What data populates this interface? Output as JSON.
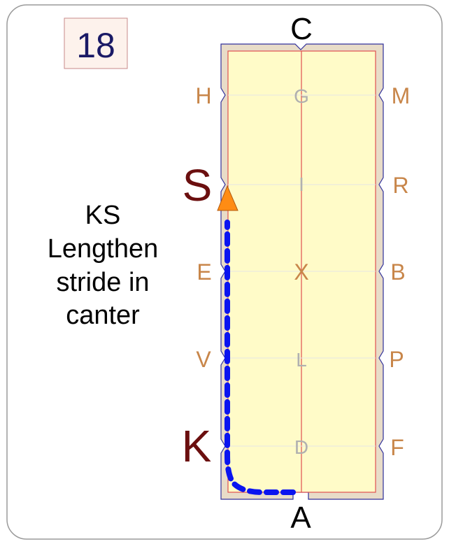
{
  "card": {
    "number": "18",
    "instruction_lines": [
      "KS",
      "Lengthen",
      "stride in",
      "canter"
    ]
  },
  "arena": {
    "letters": {
      "A": "A",
      "C": "C",
      "H": "H",
      "M": "M",
      "S": "S",
      "R": "R",
      "E": "E",
      "B": "B",
      "V": "V",
      "P": "P",
      "K": "K",
      "F": "F"
    },
    "centerline_letters": {
      "G": "G",
      "I": "I",
      "X": "X",
      "L": "L",
      "D": "D"
    },
    "highlighted_letters": [
      "K",
      "S"
    ]
  },
  "colors": {
    "arena_fill": "#fffbc8",
    "arena_border": "#e8dcc8",
    "rail_line": "#e05050",
    "side_letter": "#c8864a",
    "highlight_letter": "#6b0f0f",
    "centerline_letter": "#b0b0b0",
    "path": "#0a14f0",
    "arrow": "#ff8c14",
    "number_box_fill": "#fdf2ec",
    "number_text": "#1a1a66"
  },
  "path": {
    "style": "dashed",
    "description_icons": [
      "arrow-icon"
    ]
  }
}
